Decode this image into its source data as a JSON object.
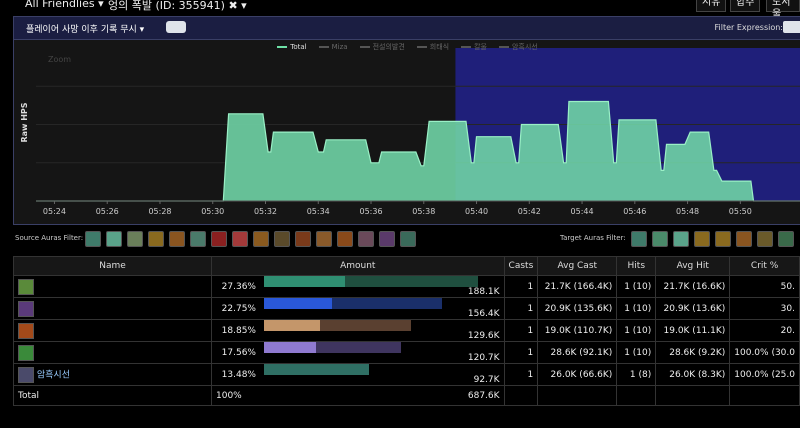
{
  "topbar": {
    "filter_dropdown": "All Friendlies ▾",
    "target_name": "엉의 폭발 (ID: 355941) ✖ ▾",
    "btn1": "시유",
    "btn2": "합주",
    "btn3": "도서울"
  },
  "panel": {
    "death_dropdown": "플레이어 사망 이후 기록 무시 ▾",
    "filter_expression_label": "Filter Expression:",
    "zoom_label": "Zoom",
    "y_axis_label": "Raw HPS"
  },
  "legend": [
    {
      "name": "Total",
      "color": "#6ee0a6"
    },
    {
      "name": "Miza",
      "color": "#555555"
    },
    {
      "name": "전설의발견",
      "color": "#555555"
    },
    {
      "name": "희태식",
      "color": "#555555"
    },
    {
      "name": "칼울",
      "color": "#555555"
    },
    {
      "name": "암흑시선",
      "color": "#555555"
    }
  ],
  "chart_data": {
    "type": "area",
    "title": "",
    "xlabel": "",
    "ylabel": "Raw HPS",
    "x_ticks": [
      "05:24",
      "05:26",
      "05:28",
      "05:30",
      "05:32",
      "05:34",
      "05:36",
      "05:38",
      "05:40",
      "05:42",
      "05:44",
      "05:46",
      "05:48",
      "05:50"
    ],
    "x_tick_seconds": [
      324,
      326,
      328,
      330,
      332,
      334,
      336,
      338,
      340,
      342,
      344,
      346,
      348,
      350
    ],
    "x_range": [
      323.3,
      352.3
    ],
    "y_range": [
      0,
      100
    ],
    "selection_start_seconds": 339.2,
    "series": [
      {
        "name": "Total",
        "points": [
          [
            323.3,
            0
          ],
          [
            330.4,
            0
          ],
          [
            330.6,
            57
          ],
          [
            331.9,
            57
          ],
          [
            332.1,
            32
          ],
          [
            332.2,
            32
          ],
          [
            332.3,
            45
          ],
          [
            333.8,
            45
          ],
          [
            334.0,
            32
          ],
          [
            334.2,
            32
          ],
          [
            334.3,
            40
          ],
          [
            335.8,
            40
          ],
          [
            336.0,
            25
          ],
          [
            336.3,
            25
          ],
          [
            336.4,
            32
          ],
          [
            337.7,
            32
          ],
          [
            337.9,
            23
          ],
          [
            338.0,
            23
          ],
          [
            338.2,
            52
          ],
          [
            339.6,
            52
          ],
          [
            339.8,
            25
          ],
          [
            339.9,
            25
          ],
          [
            340.0,
            42
          ],
          [
            341.3,
            42
          ],
          [
            341.5,
            25
          ],
          [
            341.6,
            25
          ],
          [
            341.7,
            50
          ],
          [
            343.1,
            50
          ],
          [
            343.3,
            25
          ],
          [
            343.4,
            25
          ],
          [
            343.5,
            65
          ],
          [
            345.0,
            65
          ],
          [
            345.2,
            25
          ],
          [
            345.3,
            25
          ],
          [
            345.4,
            53
          ],
          [
            346.8,
            53
          ],
          [
            347.0,
            20
          ],
          [
            347.1,
            20
          ],
          [
            347.2,
            37
          ],
          [
            347.9,
            37
          ],
          [
            348.1,
            45
          ],
          [
            348.8,
            45
          ],
          [
            349.0,
            20
          ],
          [
            349.1,
            20
          ],
          [
            349.3,
            13
          ],
          [
            350.4,
            13
          ],
          [
            350.5,
            0
          ],
          [
            352.3,
            0
          ]
        ]
      }
    ]
  },
  "aura_filters": {
    "source_label": "Source Auras Filter:",
    "source_icons": [
      "aura-1",
      "aura-2",
      "aura-3",
      "aura-4",
      "aura-5",
      "aura-6",
      "aura-7",
      "aura-8",
      "aura-9",
      "aura-10",
      "aura-11",
      "aura-12",
      "aura-13",
      "aura-14",
      "aura-15",
      "aura-16"
    ],
    "target_label": "Target Auras Filter:",
    "target_icons": [
      "aura-t1",
      "aura-t2",
      "aura-t3",
      "aura-t4",
      "aura-t5",
      "aura-t6",
      "aura-t7",
      "aura-t8"
    ],
    "icon_colors": [
      "#3f7b6a",
      "#5aa38a",
      "#6a7f5a",
      "#8a6a1f",
      "#8a5520",
      "#4a7a6a",
      "#8a2020",
      "#a33a3a",
      "#8a5a1f",
      "#5a4a2a",
      "#7a3a1a",
      "#8a5a2a",
      "#8a4a1a",
      "#6a4a5a",
      "#5a3a6a",
      "#3a6a5a",
      "#3f7b6a",
      "#4a8a6a",
      "#5aa38a",
      "#8a6a1f",
      "#8a6a1f",
      "#8a5520",
      "#6a5a2a",
      "#3a6a4a"
    ]
  },
  "table": {
    "headers": [
      "Name",
      "Amount",
      "Casts",
      "Avg Cast",
      "Hits",
      "Avg Hit",
      "Crit %"
    ],
    "rows": [
      {
        "icon_color": "#5a8a3a",
        "name": "",
        "percent": "27.36%",
        "total": "188.1K",
        "casts": "1",
        "avg_cast": "21.7K (166.4K)",
        "hits": "1 (10)",
        "avg_hit": "21.7K (16.6K)",
        "crit": "50.",
        "bar_fill": 0.2736,
        "bar_color": "#2f8f72",
        "bar_bg": "#1f4f3f"
      },
      {
        "icon_color": "#5a3a7a",
        "name": "",
        "percent": "22.75%",
        "total": "156.4K",
        "casts": "1",
        "avg_cast": "20.9K (135.6K)",
        "hits": "1 (10)",
        "avg_hit": "20.9K (13.6K)",
        "crit": "30.",
        "bar_fill": 0.2275,
        "bar_color": "#2a58d8",
        "bar_bg": "#1a2f6a"
      },
      {
        "icon_color": "#a34a1a",
        "name": "",
        "percent": "18.85%",
        "total": "129.6K",
        "casts": "1",
        "avg_cast": "19.0K (110.7K)",
        "hits": "1 (10)",
        "avg_hit": "19.0K (11.1K)",
        "crit": "20.",
        "bar_fill": 0.1885,
        "bar_color": "#c4966a",
        "bar_bg": "#5a4030"
      },
      {
        "icon_color": "#3a8a3a",
        "name": "",
        "percent": "17.56%",
        "total": "120.7K",
        "casts": "1",
        "avg_cast": "28.6K (92.1K)",
        "hits": "1 (10)",
        "avg_hit": "28.6K (9.2K)",
        "crit": "100.0% (30.0",
        "bar_fill": 0.1756,
        "bar_color": "#8f7ad0",
        "bar_bg": "#3f355f"
      },
      {
        "icon_color": "#4a4a6a",
        "name": "암흑시선",
        "percent": "13.48%",
        "total": "92.7K",
        "casts": "1",
        "avg_cast": "26.0K (66.6K)",
        "hits": "1 (8)",
        "avg_hit": "26.0K (8.3K)",
        "crit": "100.0% (25.0",
        "bar_fill": 0.1348,
        "bar_color": "#2f6f64",
        "bar_bg": "#2f6f64"
      }
    ],
    "footer": {
      "label": "Total",
      "percent": "100%",
      "total": "687.6K"
    }
  }
}
